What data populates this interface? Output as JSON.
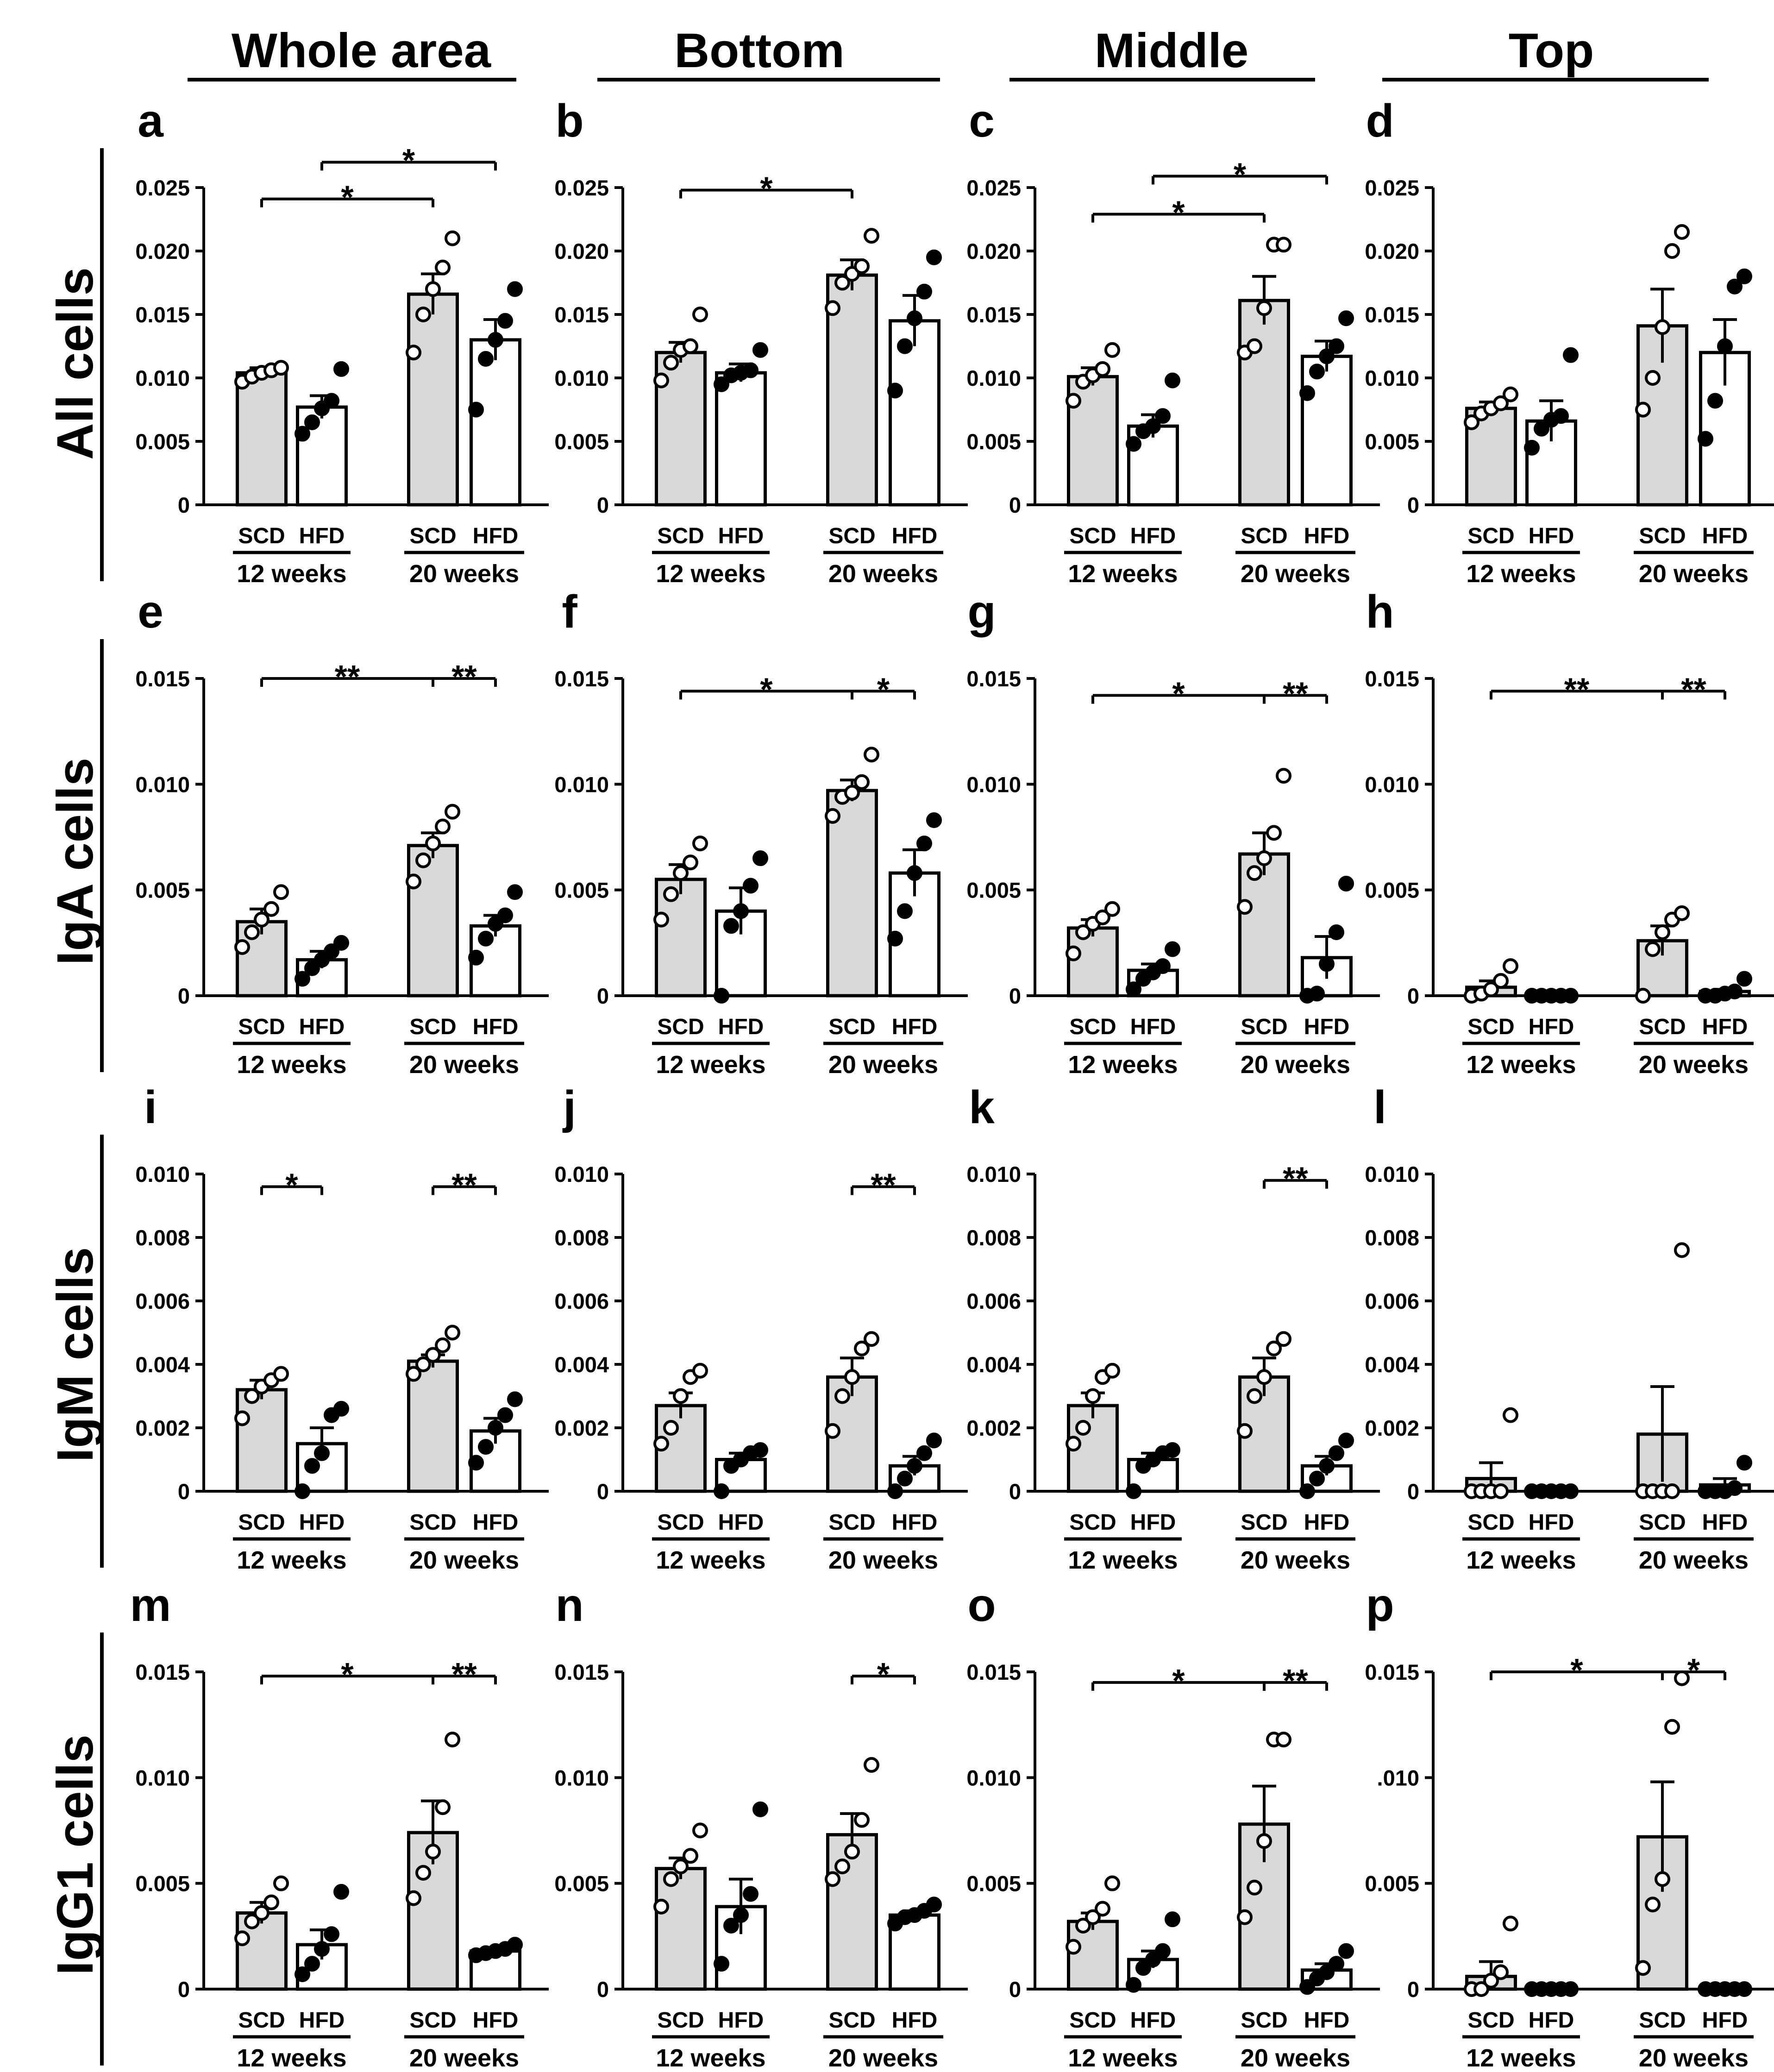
{
  "figure": {
    "column_headers": [
      "Whole area",
      "Bottom",
      "Middle",
      "Top"
    ],
    "row_labels": [
      "All cells",
      "IgA cells",
      "IgM cells",
      "IgG1 cells"
    ],
    "colors": {
      "scd_bar": "#d9d9d9",
      "hfd_bar": "#ffffff",
      "stroke": "#000000"
    }
  },
  "chart_data": [
    {
      "panel": "a",
      "type": "bar",
      "yticks": [
        "0",
        "0.005",
        "0.010",
        "0.015",
        "0.020",
        "0.025"
      ],
      "ylim": [
        0,
        0.025
      ],
      "categories": [
        "SCD",
        "HFD",
        "SCD",
        "HFD"
      ],
      "groups": [
        "12 weeks",
        "20 weeks"
      ],
      "means": [
        0.0104,
        0.0077,
        0.0166,
        0.013
      ],
      "sems": [
        0.0004,
        0.0009,
        0.0016,
        0.0016
      ],
      "points": [
        [
          0.0097,
          0.0101,
          0.0104,
          0.0106,
          0.0108
        ],
        [
          0.0056,
          0.0065,
          0.0076,
          0.0082,
          0.0107
        ],
        [
          0.012,
          0.015,
          0.017,
          0.0187,
          0.021
        ],
        [
          0.0075,
          0.0115,
          0.013,
          0.0145,
          0.017
        ]
      ],
      "sig": [
        {
          "from": 0,
          "to": 2,
          "label": "*",
          "level": 0.0241
        },
        {
          "from": 1,
          "to": 3,
          "label": "*",
          "level": 0.027
        }
      ]
    },
    {
      "panel": "b",
      "type": "bar",
      "yticks": [
        "0",
        "0.005",
        "0.010",
        "0.015",
        "0.020",
        "0.025"
      ],
      "ylim": [
        0,
        0.025
      ],
      "categories": [
        "SCD",
        "HFD",
        "SCD",
        "HFD"
      ],
      "groups": [
        "12 weeks",
        "20 weeks"
      ],
      "means": [
        0.012,
        0.0104,
        0.0181,
        0.0145
      ],
      "sems": [
        0.0008,
        0.0007,
        0.0012,
        0.002
      ],
      "points": [
        [
          0.0098,
          0.0112,
          0.0122,
          0.0125,
          0.015
        ],
        [
          0.0095,
          0.0102,
          0.0104,
          0.0106,
          0.0122
        ],
        [
          0.0155,
          0.0175,
          0.0182,
          0.0188,
          0.0212
        ],
        [
          0.009,
          0.0125,
          0.0147,
          0.0168,
          0.0195
        ]
      ],
      "sig": [
        {
          "from": 0,
          "to": 2,
          "label": "*",
          "level": 0.0248
        }
      ]
    },
    {
      "panel": "c",
      "type": "bar",
      "yticks": [
        "0",
        "0.005",
        "0.010",
        "0.015",
        "0.020",
        "0.025"
      ],
      "ylim": [
        0,
        0.025
      ],
      "categories": [
        "SCD",
        "HFD",
        "SCD",
        "HFD"
      ],
      "groups": [
        "12 weeks",
        "20 weeks"
      ],
      "means": [
        0.0101,
        0.0062,
        0.0161,
        0.0117
      ],
      "sems": [
        0.0007,
        0.0009,
        0.0019,
        0.0012
      ],
      "points": [
        [
          0.0082,
          0.0097,
          0.0102,
          0.0107,
          0.0122
        ],
        [
          0.0048,
          0.0058,
          0.0062,
          0.007,
          0.0098
        ],
        [
          0.012,
          0.0125,
          0.0155,
          0.0205,
          0.0205
        ],
        [
          0.0088,
          0.0105,
          0.0117,
          0.0125,
          0.0147
        ]
      ],
      "sig": [
        {
          "from": 0,
          "to": 2,
          "label": "*",
          "level": 0.0229
        },
        {
          "from": 1,
          "to": 3,
          "label": "*",
          "level": 0.0259
        }
      ]
    },
    {
      "panel": "d",
      "type": "bar",
      "yticks": [
        "0",
        "0.005",
        "0.010",
        "0.015",
        "0.020",
        "0.025"
      ],
      "ylim": [
        0,
        0.025
      ],
      "categories": [
        "SCD",
        "HFD",
        "SCD",
        "HFD"
      ],
      "groups": [
        "12 weeks",
        "20 weeks"
      ],
      "means": [
        0.0076,
        0.0066,
        0.0141,
        0.012
      ],
      "sems": [
        0.0005,
        0.0016,
        0.0029,
        0.0026
      ],
      "points": [
        [
          0.0065,
          0.0072,
          0.0076,
          0.008,
          0.0087
        ],
        [
          0.0045,
          0.006,
          0.0067,
          0.007,
          0.0118
        ],
        [
          0.0075,
          0.01,
          0.014,
          0.02,
          0.0215
        ],
        [
          0.0052,
          0.0082,
          0.0125,
          0.0172,
          0.018
        ]
      ],
      "sig": []
    },
    {
      "panel": "e",
      "type": "bar",
      "yticks": [
        "0",
        "0.005",
        "0.010",
        "0.015"
      ],
      "ylim": [
        0,
        0.015
      ],
      "categories": [
        "SCD",
        "HFD",
        "SCD",
        "HFD"
      ],
      "groups": [
        "12 weeks",
        "20 weeks"
      ],
      "means": [
        0.0035,
        0.0017,
        0.0071,
        0.0033
      ],
      "sems": [
        0.0006,
        0.0004,
        0.0006,
        0.0005
      ],
      "points": [
        [
          0.0023,
          0.003,
          0.0036,
          0.0041,
          0.0049
        ],
        [
          0.0008,
          0.0013,
          0.0017,
          0.0021,
          0.0025
        ],
        [
          0.0054,
          0.0064,
          0.0072,
          0.008,
          0.0087
        ],
        [
          0.0018,
          0.0027,
          0.0034,
          0.0038,
          0.0049
        ]
      ],
      "sig": [
        {
          "from": 0,
          "to": 2,
          "label": "**",
          "level": 0.015
        },
        {
          "from": 2,
          "to": 3,
          "label": "**",
          "level": 0.015
        }
      ]
    },
    {
      "panel": "f",
      "type": "bar",
      "yticks": [
        "0",
        "0.005",
        "0.010",
        "0.015"
      ],
      "ylim": [
        0,
        0.015
      ],
      "categories": [
        "SCD",
        "HFD",
        "SCD",
        "HFD"
      ],
      "groups": [
        "12 weeks",
        "20 weeks"
      ],
      "means": [
        0.0055,
        0.004,
        0.0097,
        0.0058
      ],
      "sems": [
        0.0007,
        0.0011,
        0.0005,
        0.0011
      ],
      "points": [
        [
          0.0036,
          0.0048,
          0.0058,
          0.0063,
          0.0072
        ],
        [
          0.0,
          0.0033,
          0.004,
          0.0052,
          0.0065
        ],
        [
          0.0085,
          0.0094,
          0.0096,
          0.0101,
          0.0114
        ],
        [
          0.0027,
          0.004,
          0.0058,
          0.0072,
          0.0083
        ]
      ],
      "sig": [
        {
          "from": 0,
          "to": 2,
          "label": "*",
          "level": 0.0144
        },
        {
          "from": 2,
          "to": 3,
          "label": "*",
          "level": 0.0144
        }
      ]
    },
    {
      "panel": "g",
      "type": "bar",
      "yticks": [
        "0",
        "0.005",
        "0.010",
        "0.015"
      ],
      "ylim": [
        0,
        0.015
      ],
      "categories": [
        "SCD",
        "HFD",
        "SCD",
        "HFD"
      ],
      "groups": [
        "12 weeks",
        "20 weeks"
      ],
      "means": [
        0.0032,
        0.0012,
        0.0067,
        0.0018
      ],
      "sems": [
        0.0004,
        0.0003,
        0.001,
        0.001
      ],
      "points": [
        [
          0.002,
          0.003,
          0.0034,
          0.0037,
          0.0041
        ],
        [
          0.0003,
          0.0008,
          0.0011,
          0.0014,
          0.0022
        ],
        [
          0.0042,
          0.0058,
          0.0065,
          0.0077,
          0.0104
        ],
        [
          0.0,
          0.0001,
          0.0015,
          0.003,
          0.0053
        ]
      ],
      "sig": [
        {
          "from": 0,
          "to": 2,
          "label": "*",
          "level": 0.0142
        },
        {
          "from": 2,
          "to": 3,
          "label": "**",
          "level": 0.0142
        }
      ]
    },
    {
      "panel": "h",
      "type": "bar",
      "yticks": [
        "0",
        "0.005",
        "0.010",
        "0.015"
      ],
      "ylim": [
        0,
        0.015
      ],
      "categories": [
        "SCD",
        "HFD",
        "SCD",
        "HFD"
      ],
      "groups": [
        "12 weeks",
        "20 weeks"
      ],
      "means": [
        0.0004,
        0.0,
        0.0026,
        0.0002
      ],
      "sems": [
        0.0003,
        0.0,
        0.0007,
        0.0001
      ],
      "points": [
        [
          0.0,
          0.0001,
          0.0003,
          0.0007,
          0.0014
        ],
        [
          0.0,
          0.0,
          0.0,
          0.0,
          0.0
        ],
        [
          0.0,
          0.0022,
          0.003,
          0.0036,
          0.0039
        ],
        [
          0.0,
          0.0,
          0.0001,
          0.0002,
          0.0008
        ]
      ],
      "sig": [
        {
          "from": 0,
          "to": 2,
          "label": "**",
          "level": 0.0144
        },
        {
          "from": 2,
          "to": 3,
          "label": "**",
          "level": 0.0144
        }
      ]
    },
    {
      "panel": "i",
      "type": "bar",
      "yticks": [
        "0",
        "0.002",
        "0.004",
        "0.006",
        "0.008",
        "0.010"
      ],
      "ylim": [
        0,
        0.01
      ],
      "categories": [
        "SCD",
        "HFD",
        "SCD",
        "HFD"
      ],
      "groups": [
        "12 weeks",
        "20 weeks"
      ],
      "means": [
        0.0032,
        0.0015,
        0.0041,
        0.0019
      ],
      "sems": [
        0.0003,
        0.0005,
        0.0002,
        0.0004
      ],
      "points": [
        [
          0.0023,
          0.003,
          0.0033,
          0.0035,
          0.0037
        ],
        [
          0.0,
          0.0008,
          0.0012,
          0.0024,
          0.0026
        ],
        [
          0.0037,
          0.004,
          0.0043,
          0.0046,
          0.005
        ],
        [
          0.0009,
          0.0014,
          0.002,
          0.0024,
          0.0029
        ]
      ],
      "sig": [
        {
          "from": 0,
          "to": 1,
          "label": "*",
          "level": 0.0096
        },
        {
          "from": 2,
          "to": 3,
          "label": "**",
          "level": 0.0096
        }
      ]
    },
    {
      "panel": "j",
      "type": "bar",
      "yticks": [
        "0",
        "0.002",
        "0.004",
        "0.006",
        "0.008",
        "0.010"
      ],
      "ylim": [
        0,
        0.01
      ],
      "categories": [
        "SCD",
        "HFD",
        "SCD",
        "HFD"
      ],
      "groups": [
        "12 weeks",
        "20 weeks"
      ],
      "means": [
        0.0027,
        0.001,
        0.0036,
        0.0008
      ],
      "sems": [
        0.0004,
        0.0002,
        0.0006,
        0.0003
      ],
      "points": [
        [
          0.0015,
          0.002,
          0.003,
          0.0036,
          0.0038
        ],
        [
          0.0,
          0.0008,
          0.001,
          0.0012,
          0.0013
        ],
        [
          0.0019,
          0.003,
          0.0036,
          0.0045,
          0.0048
        ],
        [
          0.0,
          0.0004,
          0.0008,
          0.0012,
          0.0016
        ]
      ],
      "sig": [
        {
          "from": 2,
          "to": 3,
          "label": "**",
          "level": 0.0096
        }
      ]
    },
    {
      "panel": "k",
      "type": "bar",
      "yticks": [
        "0",
        "0.002",
        "0.004",
        "0.006",
        "0.008",
        "0.010"
      ],
      "ylim": [
        0,
        0.01
      ],
      "categories": [
        "SCD",
        "HFD",
        "SCD",
        "HFD"
      ],
      "groups": [
        "12 weeks",
        "20 weeks"
      ],
      "means": [
        0.0027,
        0.001,
        0.0036,
        0.0008
      ],
      "sems": [
        0.0004,
        0.0002,
        0.0006,
        0.0003
      ],
      "points": [
        [
          0.0015,
          0.002,
          0.003,
          0.0036,
          0.0038
        ],
        [
          0.0,
          0.0008,
          0.001,
          0.0012,
          0.0013
        ],
        [
          0.0019,
          0.003,
          0.0036,
          0.0045,
          0.0048
        ],
        [
          0.0,
          0.0004,
          0.0008,
          0.0012,
          0.0016
        ]
      ],
      "sig": [
        {
          "from": 2,
          "to": 3,
          "label": "**",
          "level": 0.0098
        }
      ]
    },
    {
      "panel": "l",
      "type": "bar",
      "yticks": [
        "0",
        "0.002",
        "0.004",
        "0.006",
        "0.008",
        "0.010"
      ],
      "ylim": [
        0,
        0.01
      ],
      "categories": [
        "SCD",
        "HFD",
        "SCD",
        "HFD"
      ],
      "groups": [
        "12 weeks",
        "20 weeks"
      ],
      "means": [
        0.0004,
        0.0,
        0.0018,
        0.0002
      ],
      "sems": [
        0.0005,
        0.0,
        0.0015,
        0.0002
      ],
      "points": [
        [
          0.0,
          0.0,
          0.0,
          0.0,
          0.0024
        ],
        [
          0.0,
          0.0,
          0.0,
          0.0,
          0.0
        ],
        [
          0.0,
          0.0,
          0.0,
          0.0,
          0.0076
        ],
        [
          0.0,
          0.0,
          0.0,
          0.0001,
          0.0009
        ]
      ],
      "sig": []
    },
    {
      "panel": "m",
      "type": "bar",
      "yticks": [
        "0",
        "0.005",
        "0.010",
        "0.015"
      ],
      "ylim": [
        0,
        0.015
      ],
      "categories": [
        "SCD",
        "HFD",
        "SCD",
        "HFD"
      ],
      "groups": [
        "12 weeks",
        "20 weeks"
      ],
      "means": [
        0.0036,
        0.0021,
        0.0074,
        0.0018
      ],
      "sems": [
        0.0005,
        0.0007,
        0.0015,
        0.0001
      ],
      "points": [
        [
          0.0024,
          0.0032,
          0.0036,
          0.0041,
          0.005
        ],
        [
          0.0007,
          0.0012,
          0.0019,
          0.0026,
          0.0046
        ],
        [
          0.0043,
          0.0055,
          0.0065,
          0.0086,
          0.0118
        ],
        [
          0.0016,
          0.0017,
          0.0018,
          0.0019,
          0.0021
        ]
      ],
      "sig": [
        {
          "from": 0,
          "to": 2,
          "label": "*",
          "level": 0.0148
        },
        {
          "from": 2,
          "to": 3,
          "label": "**",
          "level": 0.0148
        }
      ]
    },
    {
      "panel": "n",
      "type": "bar",
      "yticks": [
        "0",
        "0.005",
        "0.010",
        "0.015"
      ],
      "ylim": [
        0,
        0.015
      ],
      "categories": [
        "SCD",
        "HFD",
        "SCD",
        "HFD"
      ],
      "groups": [
        "12 weeks",
        "20 weeks"
      ],
      "means": [
        0.0057,
        0.0039,
        0.0073,
        0.0035
      ],
      "sems": [
        0.0005,
        0.0013,
        0.001,
        0.0002
      ],
      "points": [
        [
          0.0039,
          0.0052,
          0.0058,
          0.0063,
          0.0075
        ],
        [
          0.0012,
          0.003,
          0.0035,
          0.0045,
          0.0085
        ],
        [
          0.0052,
          0.0058,
          0.0065,
          0.008,
          0.0106
        ],
        [
          0.0031,
          0.0034,
          0.0035,
          0.0037,
          0.004
        ]
      ],
      "sig": [
        {
          "from": 2,
          "to": 3,
          "label": "*",
          "level": 0.0148
        }
      ]
    },
    {
      "panel": "o",
      "type": "bar",
      "yticks": [
        "0",
        "0.005",
        "0.010",
        "0.015"
      ],
      "ylim": [
        0,
        0.015
      ],
      "categories": [
        "SCD",
        "HFD",
        "SCD",
        "HFD"
      ],
      "groups": [
        "12 weeks",
        "20 weeks"
      ],
      "means": [
        0.0032,
        0.0014,
        0.0078,
        0.0009
      ],
      "sems": [
        0.0004,
        0.0004,
        0.0018,
        0.0003
      ],
      "points": [
        [
          0.002,
          0.003,
          0.0034,
          0.0038,
          0.005
        ],
        [
          0.0002,
          0.001,
          0.0014,
          0.0018,
          0.0033
        ],
        [
          0.0034,
          0.0048,
          0.007,
          0.0118,
          0.0118
        ],
        [
          0.0001,
          0.0005,
          0.0008,
          0.0012,
          0.0018
        ]
      ],
      "sig": [
        {
          "from": 0,
          "to": 2,
          "label": "*",
          "level": 0.0145
        },
        {
          "from": 2,
          "to": 3,
          "label": "**",
          "level": 0.0145
        }
      ]
    },
    {
      "panel": "p",
      "type": "bar",
      "yticks": [
        "0",
        "0.005",
        ".010",
        "0.015"
      ],
      "ylim": [
        0,
        0.015
      ],
      "categories": [
        "SCD",
        "HFD",
        "SCD",
        "HFD"
      ],
      "groups": [
        "12 weeks",
        "20 weeks"
      ],
      "means": [
        0.0006,
        0.0,
        0.0072,
        0.0
      ],
      "sems": [
        0.0007,
        0.0,
        0.0026,
        0.0
      ],
      "points": [
        [
          0.0,
          0.0,
          0.0004,
          0.0008,
          0.0031
        ],
        [
          0.0,
          0.0,
          0.0,
          0.0,
          0.0
        ],
        [
          0.001,
          0.004,
          0.0052,
          0.0124,
          0.0147
        ],
        [
          0.0,
          0.0,
          0.0,
          0.0,
          0.0
        ]
      ],
      "sig": [
        {
          "from": 0,
          "to": 2,
          "label": "*",
          "level": 0.015
        },
        {
          "from": 2,
          "to": 3,
          "label": "*",
          "level": 0.015
        }
      ]
    }
  ]
}
